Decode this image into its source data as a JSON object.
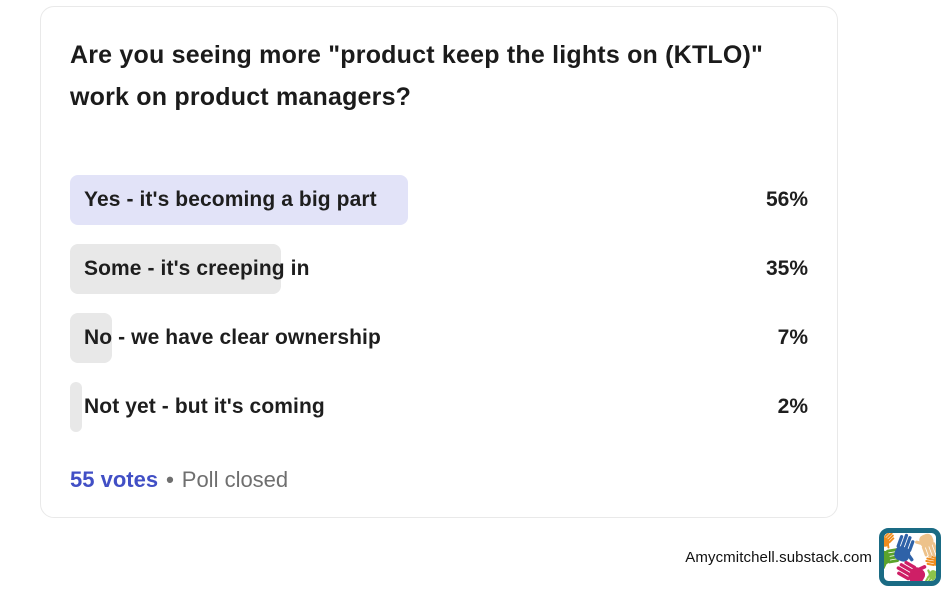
{
  "poll": {
    "question": "Are you seeing more \"product keep the lights on (KTLO)\" work on product managers?",
    "options": [
      {
        "label": "Yes - it's becoming a big part",
        "percent": "56%",
        "value": 56,
        "selected": true
      },
      {
        "label": "Some - it's creeping in",
        "percent": "35%",
        "value": 35,
        "selected": false
      },
      {
        "label": "No - we have clear ownership",
        "percent": "7%",
        "value": 7,
        "selected": false
      },
      {
        "label": "Not yet - but it's coming",
        "percent": "2%",
        "value": 2,
        "selected": false
      }
    ],
    "votes_label": "55 votes",
    "separator": "•",
    "status": "Poll closed"
  },
  "attribution": {
    "text": "Amycmitchell.substack.com",
    "logo": "hands-logo"
  },
  "colors": {
    "votes_link": "#414fc5",
    "bar_selected": "#e2e3f8",
    "bar_default": "#e8e8e8",
    "card_border": "#e9e9e9",
    "text_primary": "#1b1b1b",
    "text_muted": "#6f6f6f",
    "logo_border": "#1a6b84"
  },
  "chart_data": {
    "type": "bar",
    "orientation": "horizontal",
    "title": "Are you seeing more \"product keep the lights on (KTLO)\" work on product managers?",
    "categories": [
      "Yes - it's becoming a big part",
      "Some - it's creeping in",
      "No - we have clear ownership",
      "Not yet - but it's coming"
    ],
    "values": [
      56,
      35,
      7,
      2
    ],
    "unit": "%",
    "xlim": [
      0,
      100
    ],
    "grid": false,
    "legend": false,
    "total_votes": 55,
    "status": "Poll closed"
  }
}
